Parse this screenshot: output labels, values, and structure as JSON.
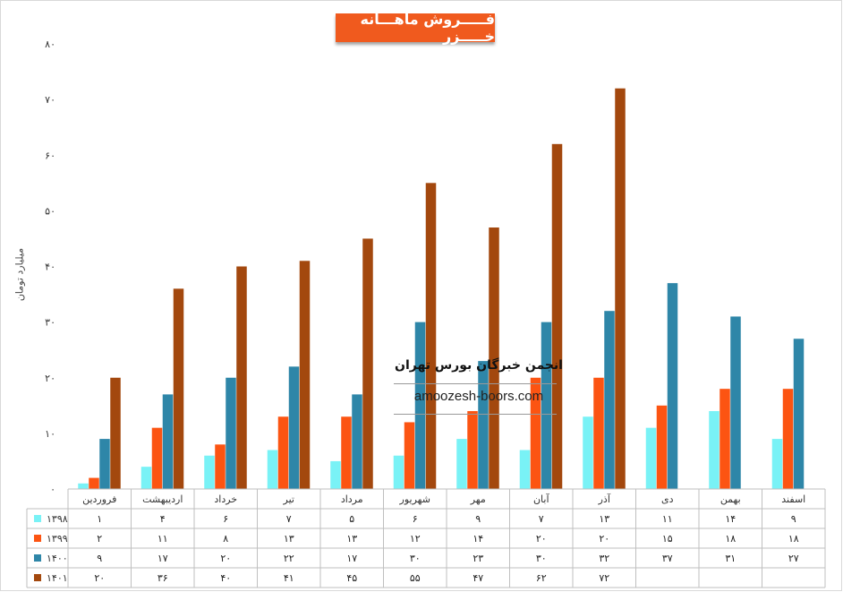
{
  "chart_data": {
    "type": "bar",
    "title": "فـــــروش ماهـــانه خـــــزر",
    "ylabel": "میلیارد تومان",
    "ylim": [
      0,
      80
    ],
    "yticks": [
      "۰",
      "۱۰",
      "۲۰",
      "۳۰",
      "۴۰",
      "۵۰",
      "۶۰",
      "۷۰",
      "۸۰"
    ],
    "categories": [
      "فروردین",
      "اردیبهشت",
      "خرداد",
      "تیر",
      "مرداد",
      "شهریور",
      "مهر",
      "آبان",
      "آذر",
      "دی",
      "بهمن",
      "اسفند"
    ],
    "series": [
      {
        "name": "۱۳۹۸",
        "color": "#79f2f6",
        "values": [
          1,
          4,
          6,
          7,
          5,
          6,
          9,
          7,
          13,
          11,
          14,
          9
        ],
        "labels": [
          "۱",
          "۴",
          "۶",
          "۷",
          "۵",
          "۶",
          "۹",
          "۷",
          "۱۳",
          "۱۱",
          "۱۴",
          "۹"
        ]
      },
      {
        "name": "۱۳۹۹",
        "color": "#fc5412",
        "values": [
          2,
          11,
          8,
          13,
          13,
          12,
          14,
          20,
          20,
          15,
          18,
          18
        ],
        "labels": [
          "۲",
          "۱۱",
          "۸",
          "۱۳",
          "۱۳",
          "۱۲",
          "۱۴",
          "۲۰",
          "۲۰",
          "۱۵",
          "۱۸",
          "۱۸"
        ]
      },
      {
        "name": "۱۴۰۰",
        "color": "#2e86a8",
        "values": [
          9,
          17,
          20,
          22,
          17,
          30,
          23,
          30,
          32,
          37,
          31,
          27
        ],
        "labels": [
          "۹",
          "۱۷",
          "۲۰",
          "۲۲",
          "۱۷",
          "۳۰",
          "۲۳",
          "۳۰",
          "۳۲",
          "۳۷",
          "۳۱",
          "۲۷"
        ]
      },
      {
        "name": "۱۴۰۱",
        "color": "#a3480e",
        "values": [
          20,
          36,
          40,
          41,
          45,
          55,
          47,
          62,
          72,
          null,
          null,
          null
        ],
        "labels": [
          "۲۰",
          "۳۶",
          "۴۰",
          "۴۱",
          "۴۵",
          "۵۵",
          "۴۷",
          "۶۲",
          "۷۲",
          "",
          "",
          ""
        ]
      }
    ],
    "grid": false,
    "legend": "table-below"
  },
  "watermark": {
    "line1": "انجمن خبرگان بورس تهران",
    "line2": "amoozesh-boors.com"
  }
}
